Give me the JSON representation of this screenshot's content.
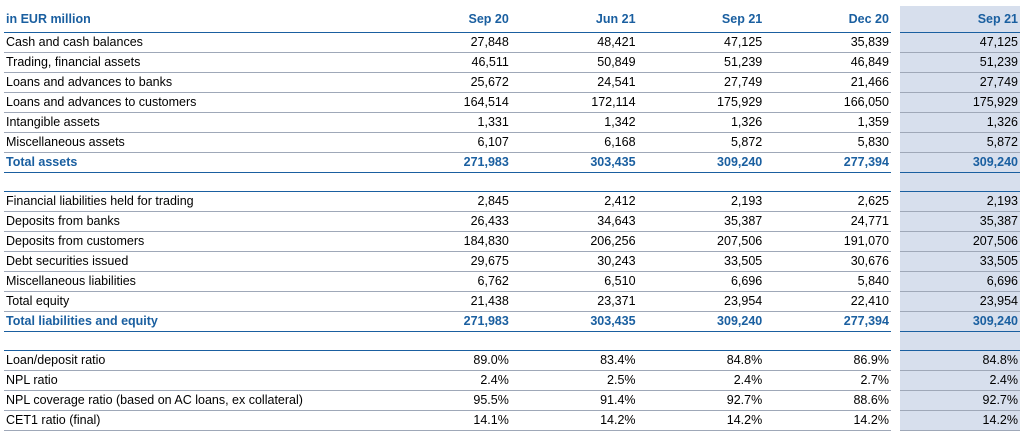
{
  "header": {
    "unit_label": "in EUR million",
    "columns": [
      "Sep 20",
      "Jun 21",
      "Sep 21",
      "Dec 20",
      "Sep 21"
    ]
  },
  "assets": {
    "rows": [
      {
        "label": "Cash and cash balances",
        "values": [
          "27,848",
          "48,421",
          "47,125",
          "35,839",
          "47,125"
        ]
      },
      {
        "label": "Trading, financial assets",
        "values": [
          "46,511",
          "50,849",
          "51,239",
          "46,849",
          "51,239"
        ]
      },
      {
        "label": "Loans and advances to banks",
        "values": [
          "25,672",
          "24,541",
          "27,749",
          "21,466",
          "27,749"
        ]
      },
      {
        "label": "Loans and advances to customers",
        "values": [
          "164,514",
          "172,114",
          "175,929",
          "166,050",
          "175,929"
        ]
      },
      {
        "label": "Intangible assets",
        "values": [
          "1,331",
          "1,342",
          "1,326",
          "1,359",
          "1,326"
        ]
      },
      {
        "label": "Miscellaneous assets",
        "values": [
          "6,107",
          "6,168",
          "5,872",
          "5,830",
          "5,872"
        ]
      }
    ],
    "total": {
      "label": "Total assets",
      "values": [
        "271,983",
        "303,435",
        "309,240",
        "277,394",
        "309,240"
      ]
    }
  },
  "liabilities": {
    "rows": [
      {
        "label": "Financial liabilities held for trading",
        "values": [
          "2,845",
          "2,412",
          "2,193",
          "2,625",
          "2,193"
        ]
      },
      {
        "label": "Deposits from banks",
        "values": [
          "26,433",
          "34,643",
          "35,387",
          "24,771",
          "35,387"
        ]
      },
      {
        "label": "Deposits from customers",
        "values": [
          "184,830",
          "206,256",
          "207,506",
          "191,070",
          "207,506"
        ]
      },
      {
        "label": "Debt securities issued",
        "values": [
          "29,675",
          "30,243",
          "33,505",
          "30,676",
          "33,505"
        ]
      },
      {
        "label": "Miscellaneous liabilities",
        "values": [
          "6,762",
          "6,510",
          "6,696",
          "5,840",
          "6,696"
        ]
      },
      {
        "label": "Total equity",
        "values": [
          "21,438",
          "23,371",
          "23,954",
          "22,410",
          "23,954"
        ]
      }
    ],
    "total": {
      "label": "Total liabilities and equity",
      "values": [
        "271,983",
        "303,435",
        "309,240",
        "277,394",
        "309,240"
      ]
    }
  },
  "ratios": {
    "rows": [
      {
        "label": "Loan/deposit ratio",
        "values": [
          "89.0%",
          "83.4%",
          "84.8%",
          "86.9%",
          "84.8%"
        ]
      },
      {
        "label": "NPL ratio",
        "values": [
          "2.4%",
          "2.5%",
          "2.4%",
          "2.7%",
          "2.4%"
        ]
      },
      {
        "label": "NPL coverage ratio (based on AC loans, ex collateral)",
        "values": [
          "95.5%",
          "91.4%",
          "92.7%",
          "88.6%",
          "92.7%"
        ]
      },
      {
        "label": "CET1 ratio (final)",
        "values": [
          "14.1%",
          "14.2%",
          "14.2%",
          "14.2%",
          "14.2%"
        ]
      }
    ]
  },
  "colors": {
    "accent": "#1a5fa0",
    "highlight_column": "#d7dfed",
    "row_rule": "#9fa8b8"
  }
}
